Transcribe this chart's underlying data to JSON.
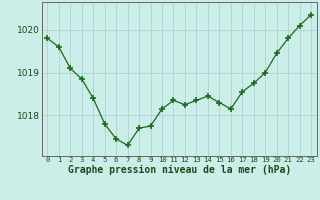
{
  "x": [
    0,
    1,
    2,
    3,
    4,
    5,
    6,
    7,
    8,
    9,
    10,
    11,
    12,
    13,
    14,
    15,
    16,
    17,
    18,
    19,
    20,
    21,
    22,
    23
  ],
  "y": [
    1019.8,
    1019.6,
    1019.1,
    1018.85,
    1018.4,
    1017.8,
    1017.45,
    1017.3,
    1017.7,
    1017.75,
    1018.15,
    1018.35,
    1018.25,
    1018.35,
    1018.45,
    1018.3,
    1018.15,
    1018.55,
    1018.75,
    1019.0,
    1019.45,
    1019.8,
    1020.1,
    1020.35
  ],
  "line_color": "#1a6b1a",
  "marker": "+",
  "marker_size": 4,
  "bg_color": "#cceee8",
  "grid_color": "#aacccc",
  "xlabel": "Graphe pression niveau de la mer (hPa)",
  "xlabel_fontsize": 7.0,
  "ylabel_ticks": [
    1018,
    1019,
    1020
  ],
  "ylim": [
    1017.05,
    1020.65
  ],
  "xlim": [
    -0.5,
    23.5
  ],
  "y_tick_fontsize": 6.5,
  "x_tick_fontsize": 5.2
}
